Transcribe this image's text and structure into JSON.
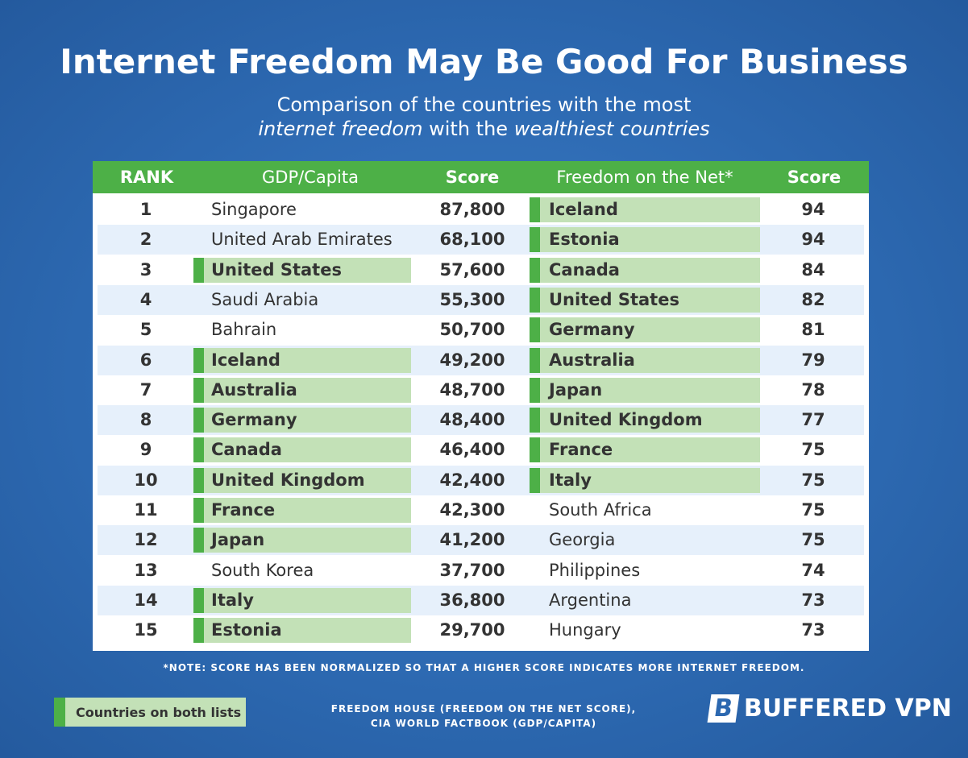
{
  "header": {
    "title": "Internet Freedom May Be Good For Business",
    "subtitle_line1": "Comparison of the countries with the most",
    "subtitle_italic1": "internet freedom",
    "subtitle_mid": "with the",
    "subtitle_italic2": "wealthiest countries"
  },
  "table": {
    "columns": [
      "RANK",
      "GDP/Capita",
      "Score",
      "Freedom on the Net*",
      "Score"
    ],
    "rows": [
      [
        "1",
        "Singapore",
        "87,800",
        "Iceland",
        "94"
      ],
      [
        "2",
        "United Arab Emirates",
        "68,100",
        "Estonia",
        "94"
      ],
      [
        "3",
        "United States",
        "57,600",
        "Canada",
        "84"
      ],
      [
        "4",
        "Saudi Arabia",
        "55,300",
        "United States",
        "82"
      ],
      [
        "5",
        "Bahrain",
        "50,700",
        "Germany",
        "81"
      ],
      [
        "6",
        "Iceland",
        "49,200",
        "Australia",
        "79"
      ],
      [
        "7",
        "Australia",
        "48,700",
        "Japan",
        "78"
      ],
      [
        "8",
        "Germany",
        "48,400",
        "United Kingdom",
        "77"
      ],
      [
        "9",
        "Canada",
        "46,400",
        "France",
        "75"
      ],
      [
        "10",
        "United Kingdom",
        "42,400",
        "Italy",
        "75"
      ],
      [
        "11",
        "France",
        "42,300",
        "South Africa",
        "75"
      ],
      [
        "12",
        "Japan",
        "41,200",
        "Georgia",
        "75"
      ],
      [
        "13",
        "South Korea",
        "37,700",
        "Philippines",
        "74"
      ],
      [
        "14",
        "Italy",
        "36,800",
        "Argentina",
        "73"
      ],
      [
        "15",
        "Estonia",
        "29,700",
        "Hungary",
        "73"
      ]
    ]
  },
  "note": "*NOTE: SCORE HAS BEEN NORMALIZED SO THAT A HIGHER SCORE INDICATES MORE INTERNET FREEDOM.",
  "legend": "Countries on both lists",
  "source_line1": "FREEDOM HOUSE (FREEDOM ON THE NET SCORE),",
  "source_line2": "CIA WORLD FACTBOOK (GDP/CAPITA)",
  "logo": {
    "mark": "B",
    "text": "BUFFERED VPN"
  }
}
